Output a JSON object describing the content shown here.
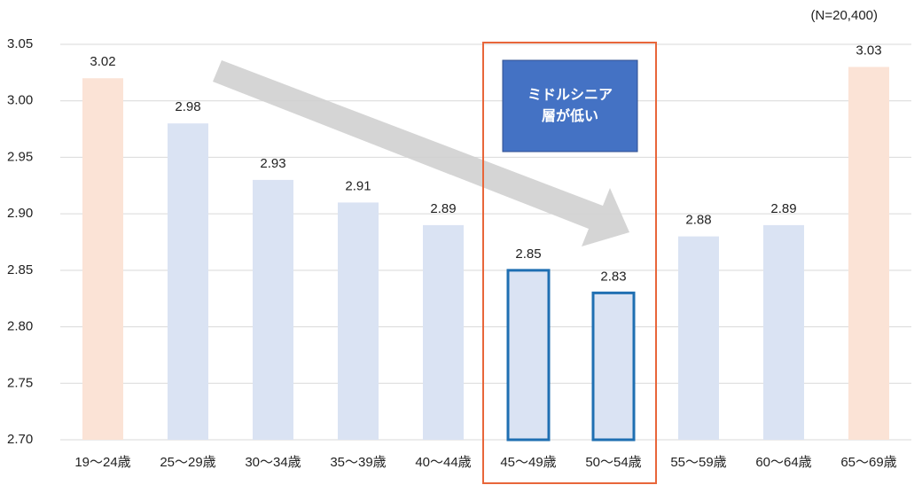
{
  "chart_data": {
    "type": "bar",
    "note": "(N=20,400)",
    "annotation_lines": [
      "ミドルシニア",
      "層が低い"
    ],
    "categories": [
      "19～24歳",
      "25～29歳",
      "30～34歳",
      "35～39歳",
      "40～44歳",
      "45～49歳",
      "50～54歳",
      "55～59歳",
      "60～64歳",
      "65～69歳"
    ],
    "values": [
      3.02,
      2.98,
      2.93,
      2.91,
      2.89,
      2.85,
      2.83,
      2.88,
      2.89,
      3.03
    ],
    "colors": [
      "#fbe3d6",
      "#dae3f3",
      "#dae3f3",
      "#dae3f3",
      "#dae3f3",
      "#dae3f3",
      "#dae3f3",
      "#dae3f3",
      "#dae3f3",
      "#fbe3d6"
    ],
    "edge_colors": [
      null,
      null,
      null,
      null,
      null,
      "#1f6fb2",
      "#1f6fb2",
      null,
      null,
      null
    ],
    "ylim": [
      2.7,
      3.05
    ],
    "yticks": [
      {
        "value": 2.7,
        "label": "2.70"
      },
      2.75,
      {
        "value": 2.8,
        "label": "2.80"
      },
      2.85,
      {
        "value": 2.9,
        "label": "2.90"
      },
      2.95,
      {
        "value": 3,
        "label": "3.00"
      },
      3.05
    ],
    "grid": true
  }
}
